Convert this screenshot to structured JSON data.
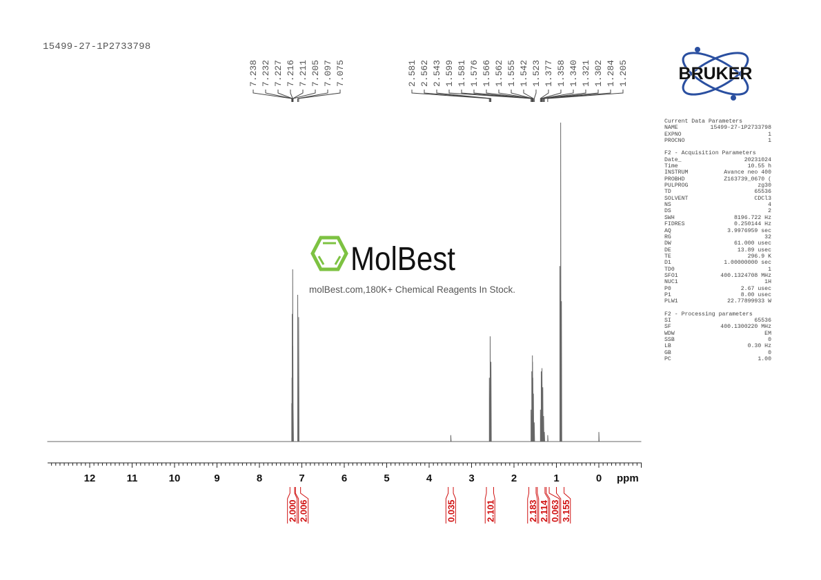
{
  "sample_id": "15499-27-1P2733798",
  "logos": {
    "bruker": "BRUKER",
    "molbest": "MolBest",
    "molbest_tagline": "molBest.com,180K+ Chemical Reagents In Stock."
  },
  "parameters": {
    "sections": [
      {
        "title": "Current Data Parameters",
        "rows": [
          [
            "NAME",
            "15499-27-1P2733798"
          ],
          [
            "EXPNO",
            "1"
          ],
          [
            "PROCNO",
            "1"
          ]
        ]
      },
      {
        "title": "F2 - Acquisition Parameters",
        "rows": [
          [
            "Date_",
            "20231024"
          ],
          [
            "Time",
            "10.55 h"
          ],
          [
            "INSTRUM",
            "Avance neo 400"
          ],
          [
            "PROBHD",
            "Z163739_0670 ("
          ],
          [
            "PULPROG",
            "zg30"
          ],
          [
            "TD",
            "65536"
          ],
          [
            "SOLVENT",
            "CDCl3"
          ],
          [
            "NS",
            "4"
          ],
          [
            "DS",
            "2"
          ],
          [
            "SWH",
            "8196.722 Hz"
          ],
          [
            "FIDRES",
            "0.250144 Hz"
          ],
          [
            "AQ",
            "3.9976959 sec"
          ],
          [
            "RG",
            "32"
          ],
          [
            "DW",
            "61.000 usec"
          ],
          [
            "DE",
            "13.89 usec"
          ],
          [
            "TE",
            "296.9 K"
          ],
          [
            "D1",
            "1.00000000 sec"
          ],
          [
            "TD0",
            "1"
          ],
          [
            "SFO1",
            "400.1324708 MHz"
          ],
          [
            "NUC1",
            "1H"
          ],
          [
            "P0",
            "2.67 usec"
          ],
          [
            "P1",
            "8.00 usec"
          ],
          [
            "PLW1",
            "22.77899933 W"
          ]
        ]
      },
      {
        "title": "F2 - Processing parameters",
        "rows": [
          [
            "SI",
            "65536"
          ],
          [
            "SF",
            "400.1300220 MHz"
          ],
          [
            "WDW",
            "EM"
          ],
          [
            "SSB",
            "0"
          ],
          [
            "LB",
            "0.30 Hz"
          ],
          [
            "GB",
            "0"
          ],
          [
            "PC",
            "1.00"
          ]
        ]
      }
    ]
  },
  "chart_data": {
    "type": "line",
    "xlabel": "ppm",
    "xlim": [
      13.0,
      -1.0
    ],
    "x_reversed": true,
    "x_ticks": [
      "12",
      "11",
      "10",
      "9",
      "8",
      "7",
      "6",
      "5",
      "4",
      "3",
      "2",
      "1",
      "0"
    ],
    "spectrum_color": "#666666",
    "integral_color": "#d01010",
    "peak_labels_group1": [
      "7.238",
      "7.232",
      "7.227",
      "7.216",
      "7.211",
      "7.205",
      "7.097",
      "7.075"
    ],
    "peak_labels_group2": [
      "2.581",
      "2.562",
      "2.543",
      "1.599",
      "1.581",
      "1.576",
      "1.566",
      "1.562",
      "1.555",
      "1.542",
      "1.523",
      "1.377",
      "1.358",
      "1.340",
      "1.321",
      "1.302",
      "1.284",
      "1.205"
    ],
    "peaks": [
      [
        7.238,
        0.12
      ],
      [
        7.232,
        0.2
      ],
      [
        7.227,
        0.4
      ],
      [
        7.216,
        0.54
      ],
      [
        7.211,
        0.3
      ],
      [
        7.205,
        0.1
      ],
      [
        7.097,
        0.46
      ],
      [
        7.075,
        0.39
      ],
      [
        3.49,
        0.02
      ],
      [
        2.581,
        0.2
      ],
      [
        2.562,
        0.33
      ],
      [
        2.543,
        0.25
      ],
      [
        1.599,
        0.1
      ],
      [
        1.581,
        0.22
      ],
      [
        1.576,
        0.2
      ],
      [
        1.566,
        0.27
      ],
      [
        1.562,
        0.25
      ],
      [
        1.555,
        0.2
      ],
      [
        1.542,
        0.15
      ],
      [
        1.523,
        0.06
      ],
      [
        1.377,
        0.1
      ],
      [
        1.358,
        0.22
      ],
      [
        1.34,
        0.23
      ],
      [
        1.321,
        0.17
      ],
      [
        1.302,
        0.08
      ],
      [
        1.284,
        0.03
      ],
      [
        1.205,
        0.02
      ],
      [
        0.918,
        0.55
      ],
      [
        0.9,
        1.0
      ],
      [
        0.882,
        0.44
      ],
      [
        0.0,
        0.03
      ]
    ],
    "integrals": [
      {
        "from": 7.28,
        "to": 7.17,
        "value": "2.000"
      },
      {
        "from": 7.15,
        "to": 7.03,
        "value": "2.006"
      },
      {
        "from": 3.55,
        "to": 3.43,
        "value": "0.035"
      },
      {
        "from": 2.65,
        "to": 2.48,
        "value": "2.101"
      },
      {
        "from": 1.65,
        "to": 1.48,
        "value": "2.183"
      },
      {
        "from": 1.45,
        "to": 1.27,
        "value": "2.114"
      },
      {
        "from": 1.24,
        "to": 1.17,
        "value": "0.063"
      },
      {
        "from": 1.0,
        "to": 0.82,
        "value": "3.155"
      }
    ]
  }
}
